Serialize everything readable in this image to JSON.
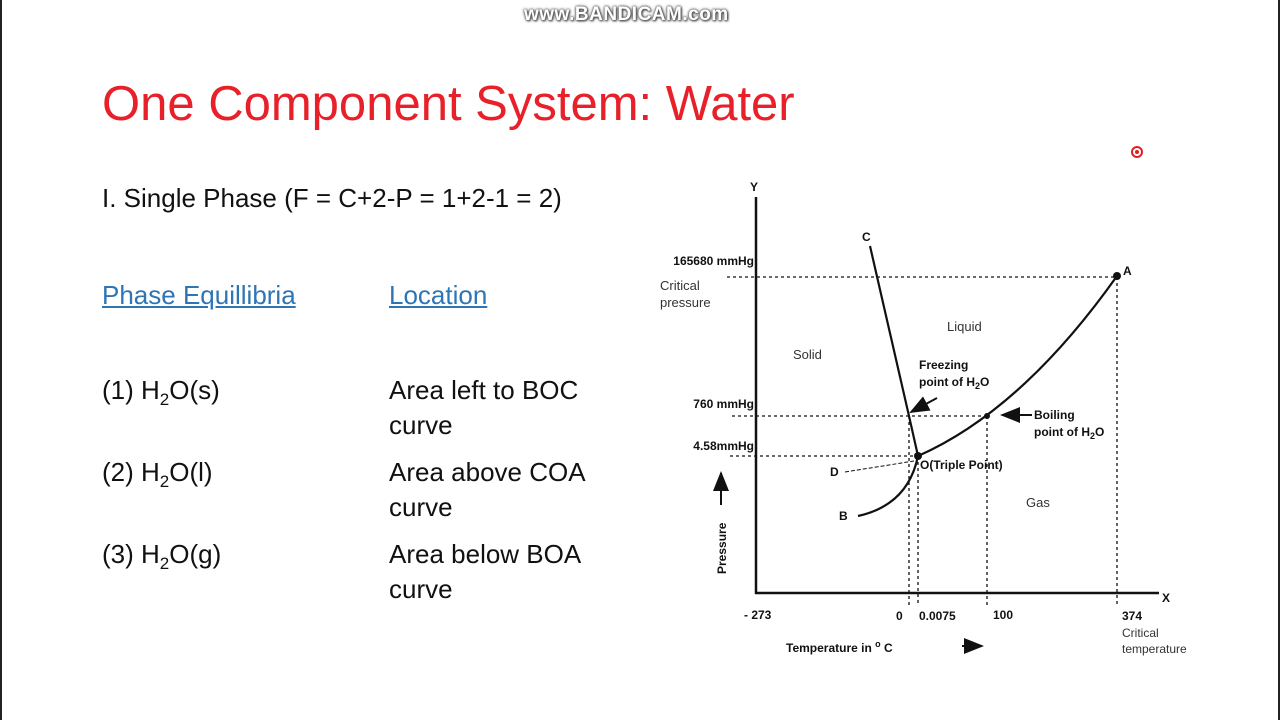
{
  "watermark": "www.BANDICAM.com",
  "title": "One Component System: Water",
  "subtitle": "I. Single Phase (F = C+2-P = 1+2-1 = 2)",
  "headers": {
    "equilibria": "Phase Equillibria",
    "location": "Location"
  },
  "rows": [
    {
      "num": "(1) H",
      "sub": "2",
      "rest": "O(s)",
      "loc1": "Area left to BOC",
      "loc2": "curve"
    },
    {
      "num": "(2) H",
      "sub": "2",
      "rest": "O(l)",
      "loc1": "Area above COA",
      "loc2": "curve"
    },
    {
      "num": "(3) H",
      "sub": "2",
      "rest": "O(g)",
      "loc1": "Area below BOA",
      "loc2": "curve"
    }
  ],
  "colors": {
    "title": "#e8202a",
    "link": "#2e75b6"
  },
  "diagram": {
    "y_axis": "Y",
    "x_axis": "X",
    "y_label": "Pressure",
    "x_label": "Temperature in ",
    "x_label_deg": "o",
    "x_label_unit": " C",
    "pressures": {
      "critical": "165680 mmHg",
      "critical_label_1": "Critical",
      "critical_label_2": "pressure",
      "atm": "760 mmHg",
      "triple": "4.58mmHg"
    },
    "temps": {
      "abs_zero": "- 273",
      "freeze": "0",
      "triple": "0.0075",
      "boil": "100",
      "critical": "374",
      "critical_label_1": "Critical",
      "critical_label_2": "temperature"
    },
    "points": {
      "A": "A",
      "B": "B",
      "C": "C",
      "D": "D",
      "O": "O(Triple Point)"
    },
    "regions": {
      "solid": "Solid",
      "liquid": "Liquid",
      "gas": "Gas"
    },
    "freezing_1": "Freezing",
    "freezing_2": "point of H",
    "boiling_1": "Boiling",
    "boiling_2": "point of H",
    "h2o_sub": "2",
    "h2o_end": "O"
  }
}
